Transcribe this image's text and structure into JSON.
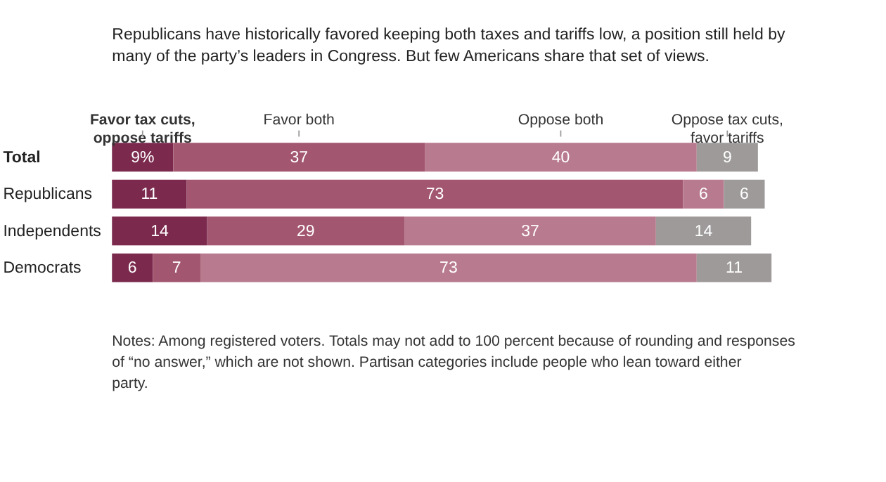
{
  "chart_data": {
    "type": "bar",
    "orientation": "horizontal",
    "stacked": true,
    "title": "Republicans have historically favored keeping both taxes and tariffs low, a position still held by many of the party’s leaders in Congress. But few Americans share that set of views.",
    "categories": [
      "Total",
      "Republicans",
      "Independents",
      "Democrats"
    ],
    "series": [
      {
        "name": "Favor tax cuts,\noppose tariffs",
        "color": "#7b2a4e",
        "values": [
          9,
          11,
          14,
          6
        ],
        "value_labels": [
          "9%",
          "11",
          "14",
          "6"
        ]
      },
      {
        "name": "Favor both",
        "color": "#a3566f",
        "values": [
          37,
          73,
          29,
          7
        ],
        "value_labels": [
          "37",
          "73",
          "29",
          "7"
        ]
      },
      {
        "name": "Oppose both",
        "color": "#b87a8e",
        "values": [
          40,
          6,
          37,
          73
        ],
        "value_labels": [
          "40",
          "6",
          "37",
          "73"
        ]
      },
      {
        "name": "Oppose tax cuts,\nfavor tariffs",
        "color": "#9e9a9a",
        "values": [
          9,
          6,
          14,
          11
        ],
        "value_labels": [
          "9",
          "6",
          "14",
          "11"
        ]
      }
    ],
    "xlim": [
      0,
      97
    ],
    "tick_labels": "y",
    "legend": "top",
    "annotations": [
      "Notes: Among registered voters. Totals may not add to 100 percent because of rounding and responses of “no answer,” which are not shown. Partisan categories include people who lean toward either party."
    ]
  }
}
